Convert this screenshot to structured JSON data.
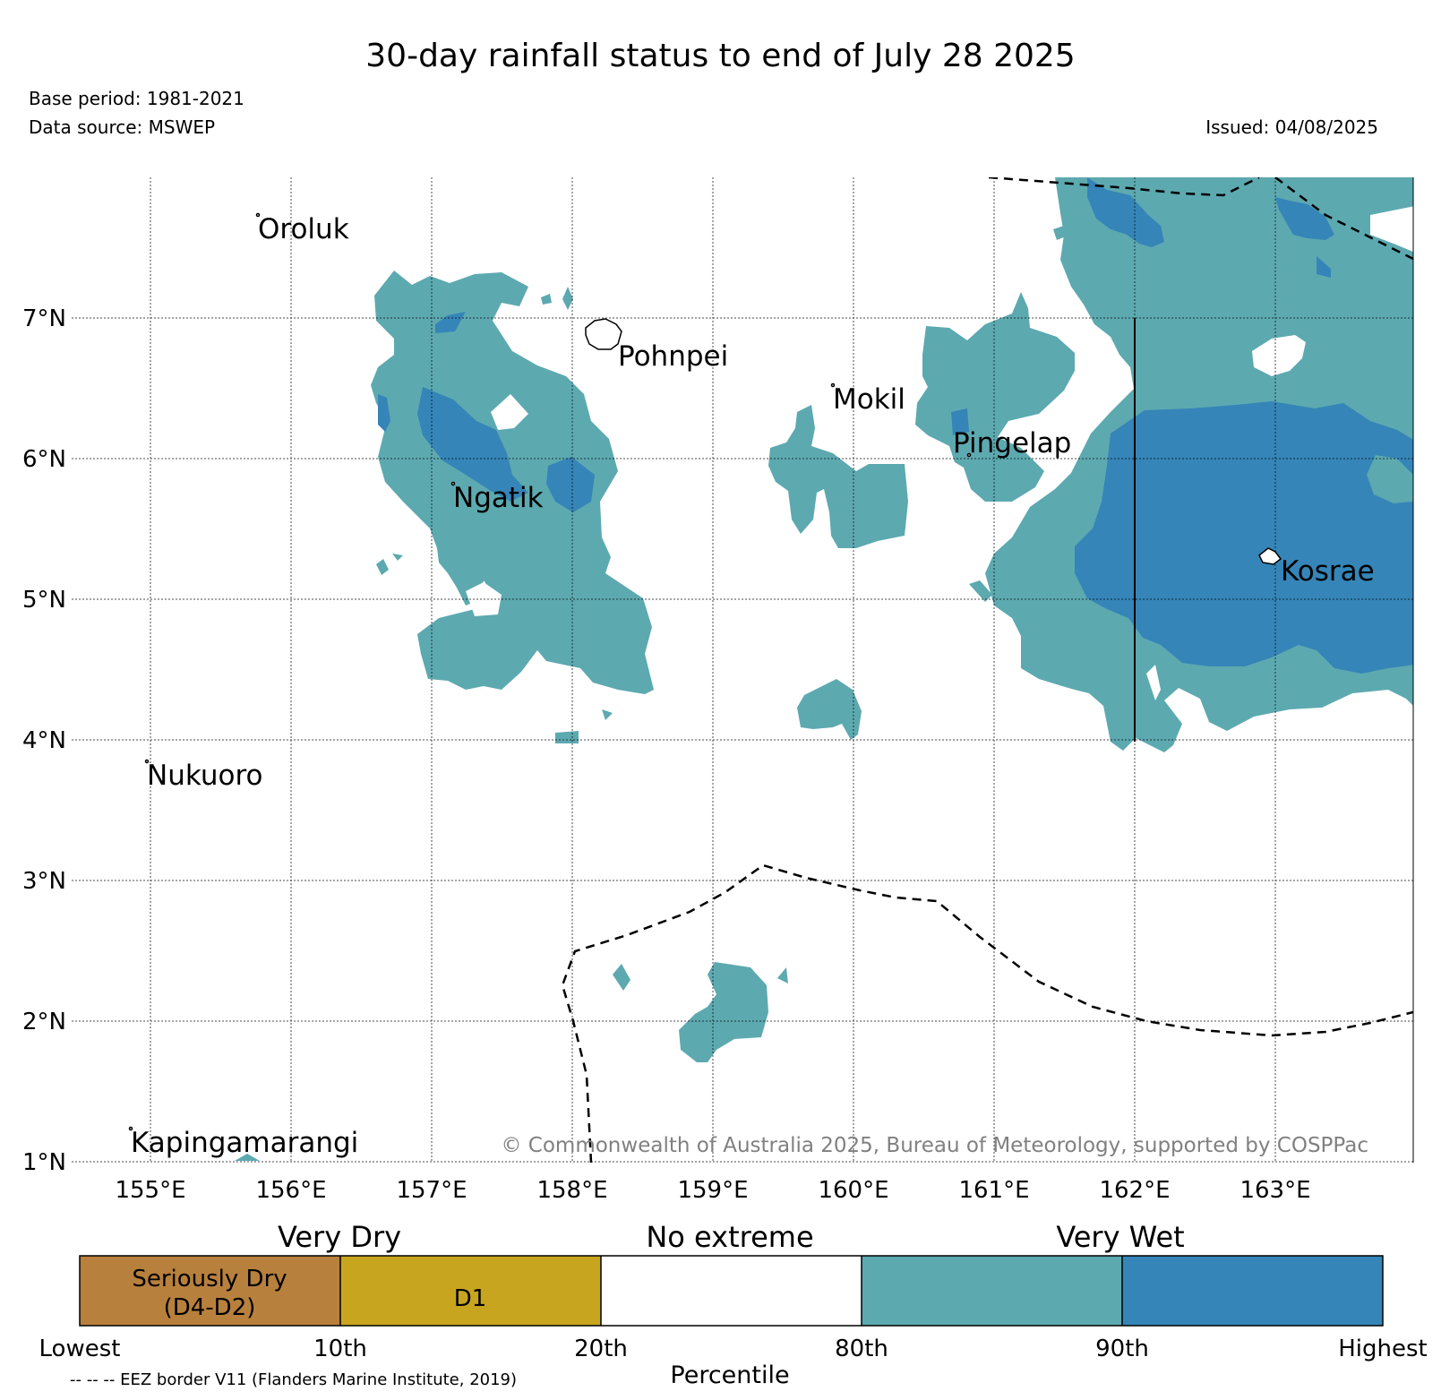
{
  "header": {
    "title": "30-day rainfall status to end of July 28 2025",
    "base_period": "Base period: 1981-2021",
    "data_source": "Data source: MSWEP",
    "issued": "Issued: 04/08/2025"
  },
  "map": {
    "lon_ticks": [
      "155°E",
      "156°E",
      "157°E",
      "158°E",
      "159°E",
      "160°E",
      "161°E",
      "162°E",
      "163°E"
    ],
    "lat_ticks": [
      "7°N",
      "6°N",
      "5°N",
      "4°N",
      "3°N",
      "2°N",
      "1°N"
    ],
    "places": [
      "Oroluk",
      "Pohnpei",
      "Mokil",
      "Pingelap",
      "Ngatik",
      "Kosrae",
      "Nukuoro",
      "Kapingamarangi"
    ],
    "copyright": "© Commonwealth of Australia 2025, Bureau of Meteorology, supported by COSPPac",
    "colors": {
      "seriously_dry": "#b8803d",
      "d1": "#c8a51f",
      "no_extreme": "#ffffff",
      "wet_80_90": "#5da9b0",
      "wet_90_highest": "#3585b8"
    }
  },
  "legend": {
    "groups": [
      "Very Dry",
      "No extreme",
      "Very Wet"
    ],
    "seriously_dry_line1": "Seriously Dry",
    "seriously_dry_line2": "(D4-D2)",
    "d1": "D1",
    "ticks": [
      "Lowest",
      "10th",
      "20th",
      "80th",
      "90th",
      "Highest"
    ],
    "axis_label": "Percentile",
    "eez_note": "-- -- -- EEZ border V11 (Flanders Marine Institute, 2019)"
  }
}
